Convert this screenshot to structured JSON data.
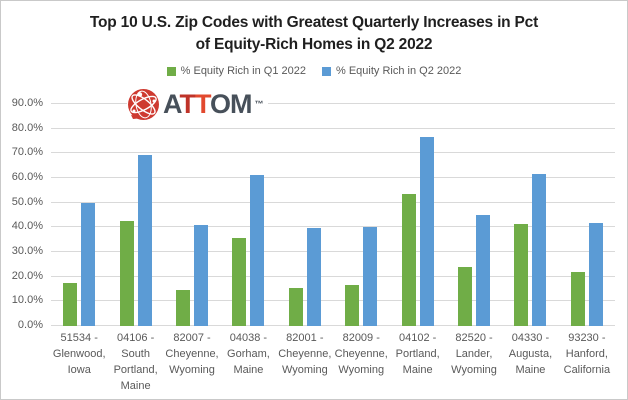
{
  "title": {
    "line1": "Top 10 U.S. Zip Codes with Greatest Quarterly Increases in Pct",
    "line2": "of Equity-Rich Homes in Q2 2022"
  },
  "legend": {
    "items": [
      {
        "label": "% Equity Rich in Q1 2022",
        "color": "#70AD47"
      },
      {
        "label": "% Equity Rich in Q2 2022",
        "color": "#5B9BD5"
      }
    ]
  },
  "logo": {
    "name": "ATTOM",
    "trademark": "™",
    "icon": "attom-atom-icon",
    "icon_color": "#CE3A30",
    "letters": [
      {
        "ch": "A",
        "color": "#47505A"
      },
      {
        "ch": "T",
        "color": "#BF3329"
      },
      {
        "ch": "T",
        "color": "#E2492E"
      },
      {
        "ch": "O",
        "color": "#47505A"
      },
      {
        "ch": "M",
        "color": "#47505A"
      }
    ]
  },
  "chart_data": {
    "type": "bar",
    "title": "Top 10 U.S. Zip Codes with Greatest Quarterly Increases in Pct of Equity-Rich Homes in Q2 2022",
    "categories": [
      "51534 - Glenwood, Iowa",
      "04106 - South Portland, Maine",
      "82007 - Cheyenne, Wyoming",
      "04038 - Gorham, Maine",
      "82001 - Cheyenne, Wyoming",
      "82009 - Cheyenne, Wyoming",
      "04102 - Portland, Maine",
      "82520 - Lander, Wyoming",
      "04330 - Augusta, Maine",
      "93230 - Hanford, California"
    ],
    "series": [
      {
        "name": "% Equity Rich in Q1 2022",
        "color": "#70AD47",
        "values": [
          17.5,
          42.6,
          14.8,
          35.5,
          15.3,
          16.5,
          53.5,
          24.0,
          41.2,
          21.9
        ]
      },
      {
        "name": "% Equity Rich in Q2 2022",
        "color": "#5B9BD5",
        "values": [
          49.9,
          69.5,
          41.0,
          61.2,
          39.7,
          40.3,
          76.8,
          45.0,
          61.6,
          41.7
        ]
      }
    ],
    "xlabel": "",
    "ylabel": "",
    "ylim": [
      0,
      90
    ],
    "ytick_step": 10,
    "yticks": [
      "0.0%",
      "10.0%",
      "20.0%",
      "30.0%",
      "40.0%",
      "50.0%",
      "60.0%",
      "70.0%",
      "80.0%",
      "90.0%"
    ],
    "grid": true,
    "legend_position": "top"
  },
  "colors": {
    "gridline": "#D9D9D9",
    "axis_text": "#595959",
    "title_text": "#1F1F1F",
    "frame_border": "#C9C9C9"
  }
}
